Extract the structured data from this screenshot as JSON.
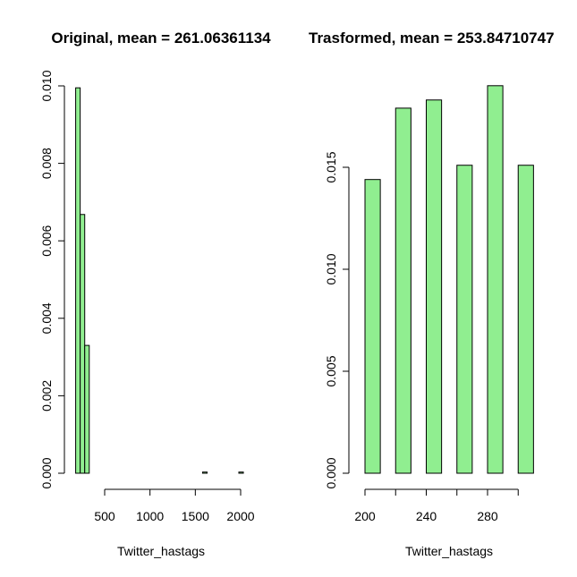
{
  "chart_data": [
    {
      "type": "bar",
      "title": "Original, mean = 261.06361134",
      "xlabel": "Twitter_hastags",
      "ylabel": "",
      "bar_color": "#90ee90",
      "xlim": [
        170,
        2050
      ],
      "ylim": [
        0,
        0.01
      ],
      "x_ticks": [
        500,
        1000,
        1500,
        2000
      ],
      "y_ticks": [
        "0.000",
        "0.002",
        "0.004",
        "0.006",
        "0.008",
        "0.010"
      ],
      "bins": [
        {
          "start": 180,
          "end": 230,
          "value": 0.00995
        },
        {
          "start": 230,
          "end": 280,
          "value": 0.00668
        },
        {
          "start": 280,
          "end": 330,
          "value": 0.0033
        },
        {
          "start": 1580,
          "end": 1630,
          "value": 3e-05
        },
        {
          "start": 1980,
          "end": 2030,
          "value": 3e-05
        }
      ]
    },
    {
      "type": "bar",
      "title": "Trasformed, mean = 253.84710747",
      "xlabel": "Twitter_hastags",
      "ylabel": "",
      "bar_color": "#90ee90",
      "xlim": [
        200,
        310
      ],
      "ylim": [
        0,
        0.019
      ],
      "x_ticks": [
        200,
        240,
        280
      ],
      "y_ticks": [
        "0.000",
        "0.005",
        "0.010",
        "0.015"
      ],
      "bins": [
        {
          "start": 200,
          "end": 210,
          "value": 0.0144
        },
        {
          "start": 220,
          "end": 230,
          "value": 0.0179
        },
        {
          "start": 240,
          "end": 250,
          "value": 0.0183
        },
        {
          "start": 260,
          "end": 270,
          "value": 0.0151
        },
        {
          "start": 280,
          "end": 290,
          "value": 0.019
        },
        {
          "start": 300,
          "end": 310,
          "value": 0.0151
        }
      ]
    }
  ]
}
